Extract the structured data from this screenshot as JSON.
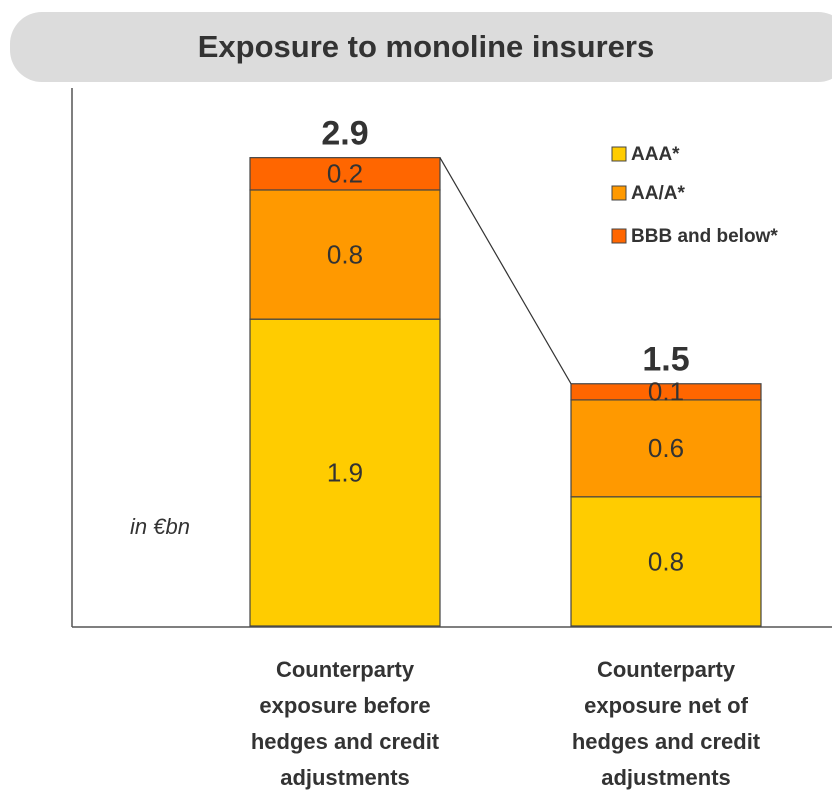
{
  "chart_data": {
    "type": "stacked_bar",
    "title": "Exposure to monoline insurers",
    "unit_label": "in €bn",
    "categories": [
      "Counterparty\nexposure before\nhedges and credit\nadjustments",
      "Counterparty\nexposure net of\nhedges and credit\nadjustments"
    ],
    "series": [
      {
        "name": "AAA*",
        "color": "#ffcc00",
        "values": [
          1.9,
          0.8
        ]
      },
      {
        "name": "AA/A*",
        "color": "#ff9900",
        "values": [
          0.8,
          0.6
        ]
      },
      {
        "name": "BBB and below*",
        "color": "#ff6600",
        "values": [
          0.2,
          0.1
        ]
      }
    ],
    "totals": [
      2.9,
      1.5
    ],
    "grid": false
  }
}
